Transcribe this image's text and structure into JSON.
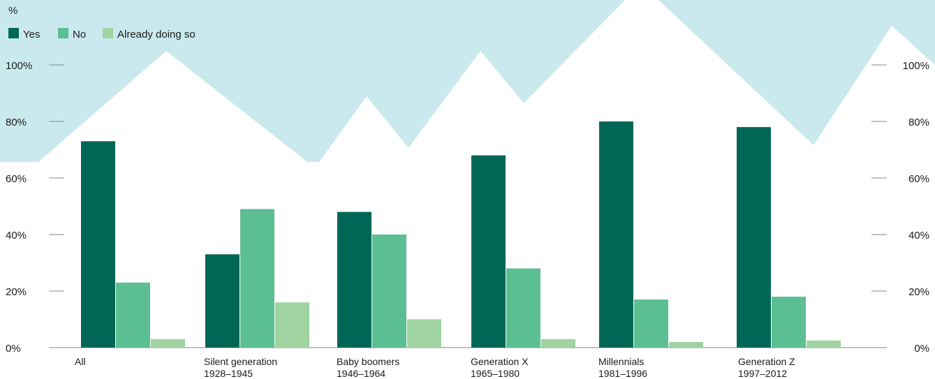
{
  "chart_data": {
    "type": "bar",
    "unit_label": "%",
    "categories": [
      {
        "line1": "All",
        "line2": ""
      },
      {
        "line1": "Silent generation",
        "line2": "1928–1945"
      },
      {
        "line1": "Baby boomers",
        "line2": "1946–1964"
      },
      {
        "line1": "Generation X",
        "line2": "1965–1980"
      },
      {
        "line1": "Millennials",
        "line2": "1981–1996"
      },
      {
        "line1": "Generation Z",
        "line2": "1997–2012"
      }
    ],
    "series": [
      {
        "name": "Yes",
        "color": "#006756",
        "values": [
          73,
          33,
          48,
          68,
          80,
          78
        ]
      },
      {
        "name": "No",
        "color": "#5cbe93",
        "values": [
          23,
          49,
          40,
          28,
          17,
          18
        ]
      },
      {
        "name": "Already doing so",
        "color": "#9fd3a0",
        "values": [
          3,
          16,
          10,
          3,
          2,
          2.5
        ]
      }
    ],
    "y_ticks": [
      "0%",
      "20%",
      "40%",
      "60%",
      "80%",
      "100%"
    ],
    "ylim": [
      0,
      100
    ],
    "legend_position": "top-left",
    "grid": false,
    "colors": {
      "background_shape": "#cae9ee",
      "axis_line": "#7d8a8a"
    }
  }
}
